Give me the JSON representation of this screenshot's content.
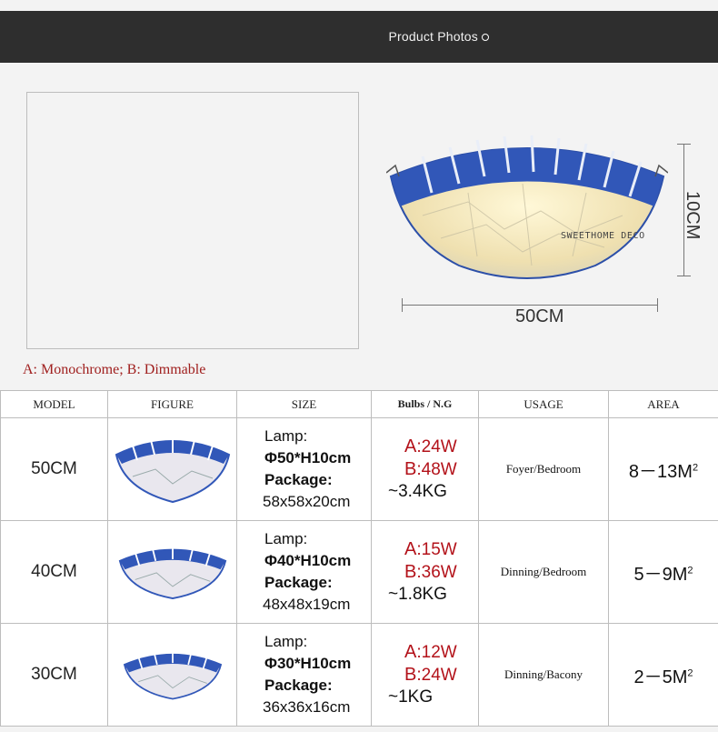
{
  "header": {
    "title": "Product Photos"
  },
  "hero": {
    "height_label": "10CM",
    "width_label": "50CM",
    "brand_watermark": "SWEETHOME DECO"
  },
  "note": "A: Monochrome;  B: Dimmable",
  "table": {
    "headers": [
      "MODEL",
      "FIGURE",
      "SIZE",
      "Bulbs /  N.G",
      "USAGE",
      "AREA"
    ],
    "rows": [
      {
        "model": "50CM",
        "lamp_label": "Lamp:",
        "lamp_size": "Φ50*H10cm",
        "package_label": "Package:",
        "package_size": "58x58x20cm",
        "a_prefix": "A",
        "a_watt": ":24W",
        "b_prefix": "B",
        "b_watt": ":48W",
        "weight": "~3.4KG",
        "usage": "Foyer/Bedroom",
        "area": "8－13M",
        "area_sup": "2"
      },
      {
        "model": "40CM",
        "lamp_label": "Lamp:",
        "lamp_size": "Φ40*H10cm",
        "package_label": "Package:",
        "package_size": "48x48x19cm",
        "a_prefix": "A",
        "a_watt": ":15W",
        "b_prefix": "B",
        "b_watt": ":36W",
        "weight": "~1.8KG",
        "usage": "Dinning/Bedroom",
        "area": "5－9M",
        "area_sup": "2"
      },
      {
        "model": "30CM",
        "lamp_label": "Lamp:",
        "lamp_size": "Φ30*H10cm",
        "package_label": "Package:",
        "package_size": "36x36x16cm",
        "a_prefix": "A",
        "a_watt": ":12W",
        "b_prefix": "B",
        "b_watt": ":24W",
        "weight": "~1KG",
        "usage": "Dinning/Bacony",
        "area": "2－5M",
        "area_sup": "2"
      }
    ]
  },
  "colors": {
    "header_bg": "#2e2e2e",
    "accent_red": "#b3121a",
    "lamp_blue": "#3157b8",
    "glass_cream": "#efe3b8"
  }
}
